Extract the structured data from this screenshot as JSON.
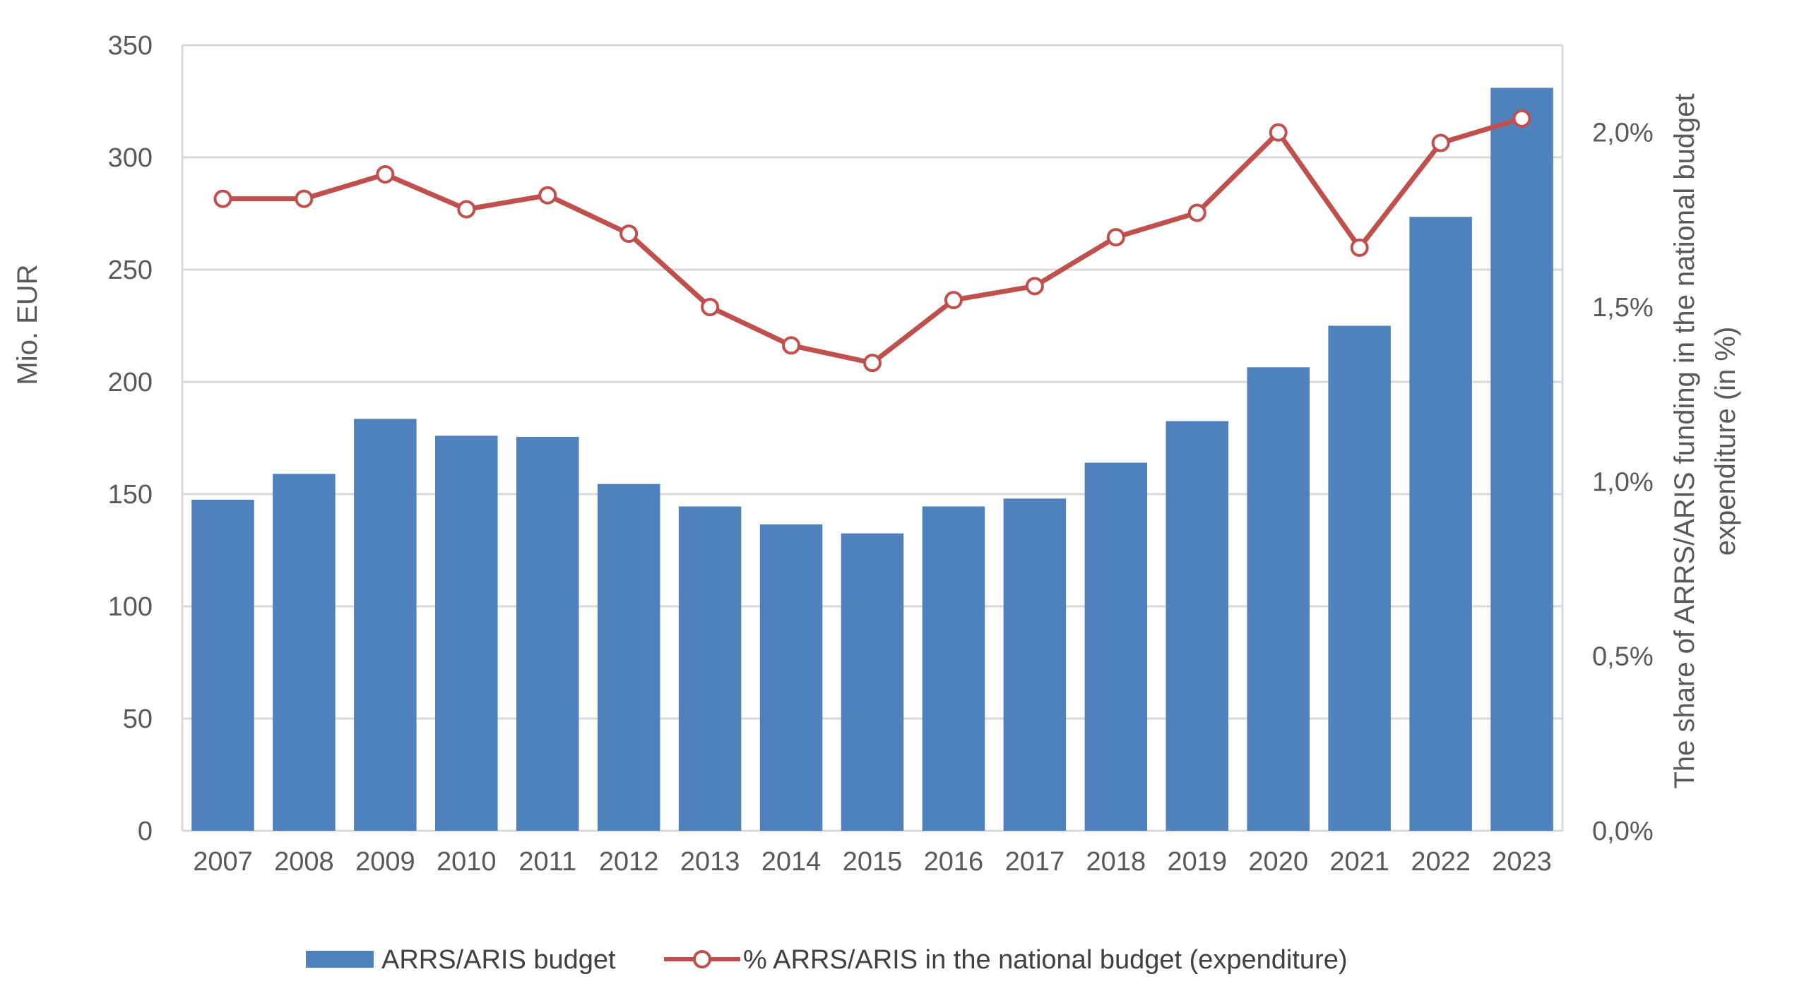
{
  "chart_data": {
    "type": "bar",
    "categories": [
      "2007",
      "2008",
      "2009",
      "2010",
      "2011",
      "2012",
      "2013",
      "2014",
      "2015",
      "2016",
      "2017",
      "2018",
      "2019",
      "2020",
      "2021",
      "2022",
      "2023"
    ],
    "series": [
      {
        "name": "ARRS/ARIS budget",
        "type": "bar",
        "axis": "left",
        "color": "#4F81BD",
        "values": [
          147.5,
          159,
          183.5,
          176,
          175.5,
          154.5,
          144.5,
          136.5,
          132.5,
          144.5,
          148,
          164,
          182.5,
          206.5,
          225,
          273.5,
          331
        ]
      },
      {
        "name": "% ARRS/ARIS in the national budget (expenditure)",
        "type": "line",
        "axis": "right",
        "color": "#C0504D",
        "values": [
          1.81,
          1.81,
          1.88,
          1.78,
          1.82,
          1.71,
          1.5,
          1.39,
          1.34,
          1.52,
          1.56,
          1.7,
          1.77,
          2.0,
          1.67,
          1.97,
          2.04
        ]
      }
    ],
    "ylabel": "Mio. EUR",
    "y2label_line1": "The share of ARRS/ARIS funding in the national budget",
    "y2label_line2": "expenditure (in %)",
    "ylim": [
      0,
      350
    ],
    "y_ticks": [
      "0",
      "50",
      "100",
      "150",
      "200",
      "250",
      "300",
      "350"
    ],
    "y2lim": [
      0,
      2.25
    ],
    "y2_ticks": [
      "0,0%",
      "0,5%",
      "1,0%",
      "1,5%",
      "2,0%"
    ],
    "grid": true,
    "legend_position": "bottom"
  }
}
